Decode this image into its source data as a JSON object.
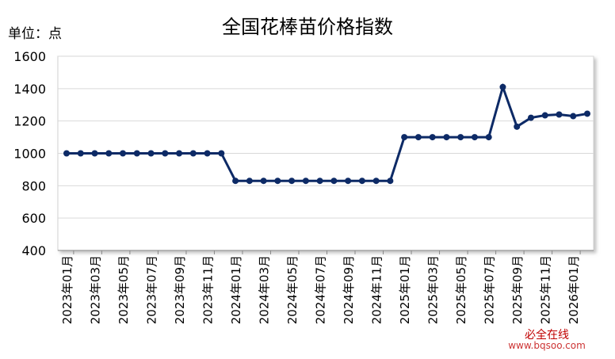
{
  "chart_data": {
    "type": "line",
    "title": "全国花棒苗价格指数",
    "unit_label": "单位：点",
    "watermark": {
      "name": "必全在线",
      "url": "www.bqsoo.com"
    },
    "categories": [
      "2023年01月",
      null,
      "2023年03月",
      null,
      "2023年05月",
      null,
      "2023年07月",
      null,
      "2023年09月",
      null,
      "2023年11月",
      null,
      "2024年01月",
      null,
      "2024年03月",
      null,
      "2024年05月",
      null,
      "2024年07月",
      null,
      "2024年09月",
      null,
      "2024年11月",
      null,
      "2025年01月",
      null,
      "2025年03月",
      null,
      "2025年05月",
      null,
      "2025年07月",
      null,
      "2025年09月",
      null,
      "2025年11月",
      null,
      "2026年01月",
      null
    ],
    "series": [
      {
        "name": "价格指数",
        "color": "#0d2a66",
        "values": [
          1000,
          1000,
          1000,
          1000,
          1000,
          1000,
          1000,
          1000,
          1000,
          1000,
          1000,
          1000,
          830,
          830,
          830,
          830,
          830,
          830,
          830,
          830,
          830,
          830,
          830,
          830,
          1100,
          1100,
          1100,
          1100,
          1100,
          1100,
          1100,
          1410,
          1165,
          1220,
          1235,
          1240,
          1230,
          1245
        ]
      }
    ],
    "ylim": [
      400,
      1600
    ],
    "yticks": [
      400,
      600,
      800,
      1000,
      1200,
      1400,
      1600
    ],
    "grid": true
  }
}
